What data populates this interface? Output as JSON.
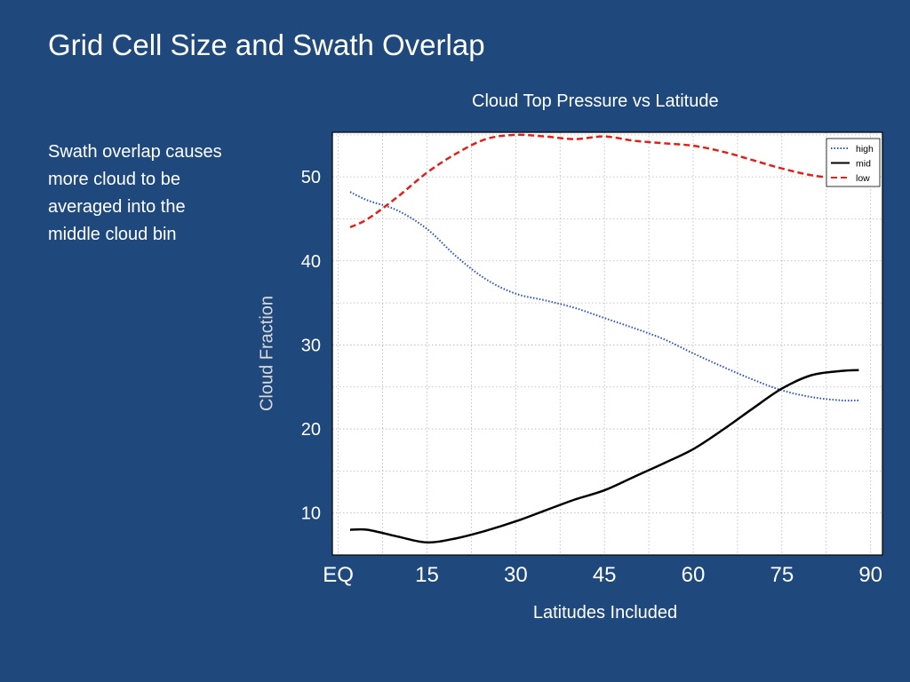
{
  "slide": {
    "title": "Grid Cell Size and Swath Overlap",
    "text": "Swath overlap causes more cloud to be averaged into the middle cloud bin"
  },
  "chart_data": {
    "type": "line",
    "title": "Cloud Top Pressure vs Latitude",
    "xlabel": "Latitudes Included",
    "ylabel": "Cloud Fraction",
    "x_ticks": [
      {
        "value": 0,
        "label": "EQ"
      },
      {
        "value": 15,
        "label": "15"
      },
      {
        "value": 30,
        "label": "30"
      },
      {
        "value": 45,
        "label": "45"
      },
      {
        "value": 60,
        "label": "60"
      },
      {
        "value": 75,
        "label": "75"
      },
      {
        "value": 90,
        "label": "90"
      }
    ],
    "y_ticks": [
      10,
      20,
      30,
      40,
      50
    ],
    "xlim": [
      -1,
      92
    ],
    "ylim": [
      5,
      55.3
    ],
    "grid": true,
    "legend_position": "top-right",
    "x": [
      2,
      5,
      10,
      15,
      20,
      25,
      30,
      35,
      40,
      45,
      50,
      55,
      60,
      65,
      70,
      75,
      80,
      85,
      88
    ],
    "series": [
      {
        "name": "high",
        "color": "#2a4fd6",
        "style": "dotted",
        "values": [
          48.2,
          47.2,
          46.0,
          43.8,
          40.5,
          37.8,
          36.1,
          35.3,
          34.4,
          33.2,
          32.0,
          30.7,
          29.0,
          27.4,
          25.9,
          24.6,
          23.8,
          23.4,
          23.4
        ]
      },
      {
        "name": "mid",
        "color": "#000000",
        "style": "solid",
        "values": [
          8.0,
          8.0,
          7.2,
          6.5,
          7.0,
          7.9,
          9.0,
          10.3,
          11.6,
          12.7,
          14.3,
          15.9,
          17.6,
          19.9,
          22.4,
          24.8,
          26.4,
          26.9,
          27.0
        ]
      },
      {
        "name": "low",
        "color": "#e0201b",
        "style": "dashed",
        "values": [
          44.0,
          45.0,
          47.6,
          50.5,
          52.8,
          54.5,
          55.0,
          54.8,
          54.5,
          54.8,
          54.3,
          54.0,
          53.7,
          53.0,
          52.0,
          51.0,
          50.2,
          49.8,
          49.8
        ]
      }
    ]
  }
}
